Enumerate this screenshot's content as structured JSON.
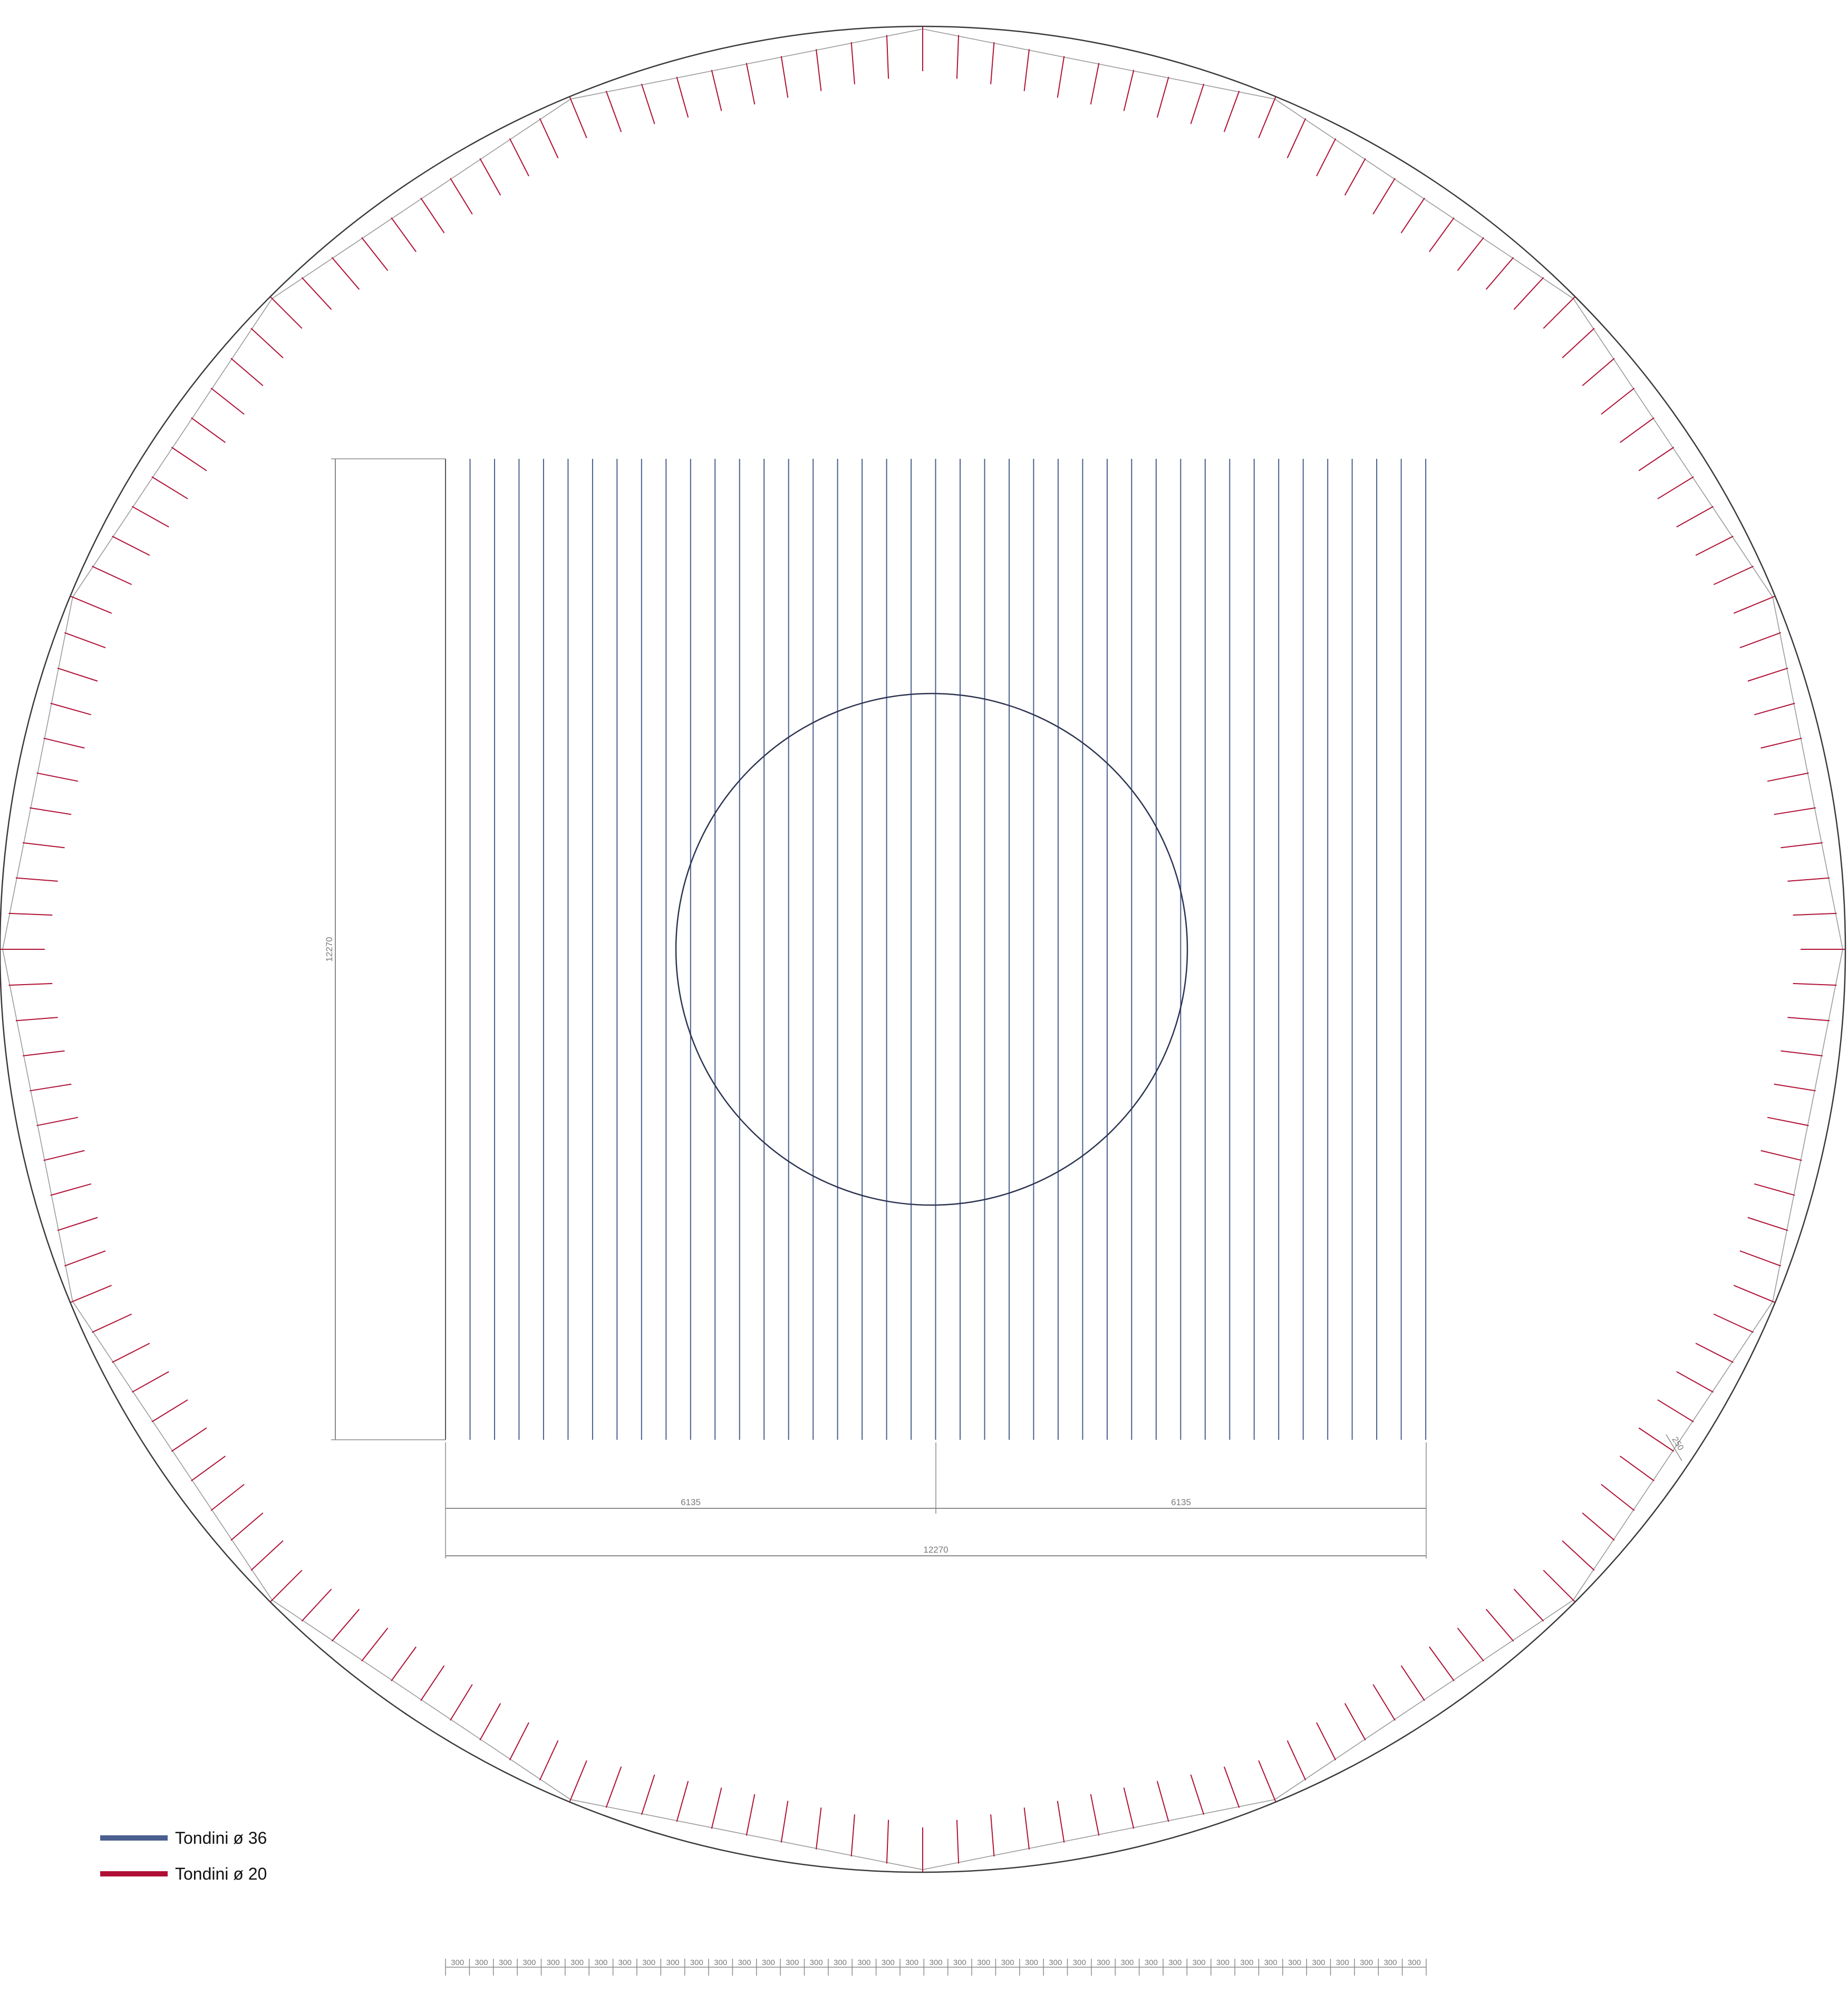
{
  "colors": {
    "outline": "#3a3a3a",
    "rebar36": "#4a5f8f",
    "rebar20": "#b01035",
    "dimension": "#8a8a8a",
    "polygon": "#9a9a9a"
  },
  "legend": {
    "items": [
      {
        "label": "Tondini ø 36",
        "color": "#4a5f8f"
      },
      {
        "label": "Tondini ø 20",
        "color": "#b01035"
      }
    ]
  },
  "dimensions": {
    "height_label": "12270",
    "half_left_label": "6135",
    "half_right_label": "6135",
    "total_width_label": "12270",
    "radial_offset_label": "250",
    "spacing_label": "300",
    "spacing_count": 41
  },
  "rebar_grid": {
    "bar_count": 41
  },
  "radial_bars": {
    "count": 160
  }
}
